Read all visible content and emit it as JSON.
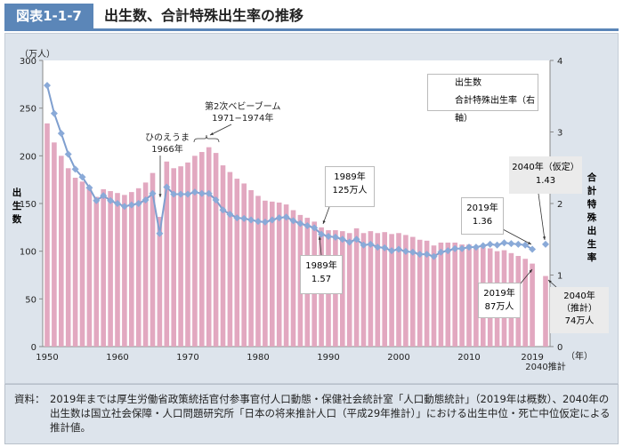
{
  "header": {
    "figure_no": "図表1-1-7",
    "title": "出生数、合計特殊出生率の推移"
  },
  "chart_data": {
    "type": "bar+line",
    "title": "出生数、合計特殊出生率の推移",
    "left_axis": {
      "label": "出生数",
      "unit": "（万人）",
      "ylim": [
        0,
        300
      ],
      "ticks": [
        0,
        50,
        100,
        150,
        200,
        250,
        300
      ]
    },
    "right_axis": {
      "label": "合計特殊出生率",
      "ylim": [
        0,
        4
      ],
      "ticks": [
        0,
        1,
        2,
        3,
        4
      ]
    },
    "x_axis": {
      "unit": "（年）",
      "tick_labels": [
        "1950",
        "1960",
        "1970",
        "1980",
        "1990",
        "2000",
        "2010",
        "2019",
        "2040推計"
      ]
    },
    "legend": {
      "position": "top-right",
      "bars": "出生数",
      "line": "合計特殊出生率（右軸）"
    },
    "years": [
      1950,
      1951,
      1952,
      1953,
      1954,
      1955,
      1956,
      1957,
      1958,
      1959,
      1960,
      1961,
      1962,
      1963,
      1964,
      1965,
      1966,
      1967,
      1968,
      1969,
      1970,
      1971,
      1972,
      1973,
      1974,
      1975,
      1976,
      1977,
      1978,
      1979,
      1980,
      1981,
      1982,
      1983,
      1984,
      1985,
      1986,
      1987,
      1988,
      1989,
      1990,
      1991,
      1992,
      1993,
      1994,
      1995,
      1996,
      1997,
      1998,
      1999,
      2000,
      2001,
      2002,
      2003,
      2004,
      2005,
      2006,
      2007,
      2008,
      2009,
      2010,
      2011,
      2012,
      2013,
      2014,
      2015,
      2016,
      2017,
      2018,
      2019
    ],
    "series": [
      {
        "name": "出生数",
        "type": "bar",
        "color": "#e2a8c0",
        "values": [
          234,
          214,
          200,
          187,
          177,
          173,
          167,
          157,
          165,
          163,
          161,
          159,
          162,
          166,
          172,
          182,
          136,
          194,
          187,
          189,
          193,
          200,
          204,
          209,
          203,
          190,
          183,
          176,
          171,
          164,
          158,
          153,
          152,
          151,
          149,
          143,
          138,
          135,
          131,
          125,
          122,
          122,
          121,
          119,
          124,
          119,
          121,
          119,
          120,
          118,
          119,
          117,
          115,
          112,
          111,
          106,
          109,
          109,
          109,
          107,
          107,
          105,
          104,
          103,
          100,
          101,
          98,
          95,
          92,
          87
        ],
        "projection": {
          "year": "2040推計",
          "value": 74
        }
      },
      {
        "name": "合計特殊出生率（右軸）",
        "type": "line",
        "color": "#7f9fcf",
        "values": [
          3.65,
          3.26,
          2.98,
          2.69,
          2.48,
          2.37,
          2.22,
          2.04,
          2.11,
          2.04,
          2.0,
          1.96,
          1.98,
          2.0,
          2.05,
          2.14,
          1.58,
          2.23,
          2.13,
          2.13,
          2.13,
          2.16,
          2.14,
          2.14,
          2.05,
          1.91,
          1.85,
          1.8,
          1.79,
          1.77,
          1.75,
          1.74,
          1.77,
          1.8,
          1.81,
          1.76,
          1.72,
          1.69,
          1.66,
          1.57,
          1.54,
          1.53,
          1.5,
          1.46,
          1.5,
          1.42,
          1.43,
          1.39,
          1.38,
          1.34,
          1.36,
          1.33,
          1.32,
          1.29,
          1.29,
          1.26,
          1.32,
          1.34,
          1.37,
          1.37,
          1.39,
          1.39,
          1.41,
          1.43,
          1.42,
          1.45,
          1.44,
          1.43,
          1.42,
          1.36
        ],
        "projection": {
          "year": "2040推計",
          "value": 1.43
        }
      }
    ],
    "annotations": {
      "hinoeuma": [
        "ひのえうま",
        "1966年"
      ],
      "babyboom": [
        "第2次ベビーブーム",
        "1971−1974年"
      ],
      "b1989": [
        "1989年",
        "125万人"
      ],
      "r1989": [
        "1989年",
        "1.57"
      ],
      "r2019": [
        "2019年",
        "1.36"
      ],
      "r2040": [
        "2040年（仮定）",
        "1.43"
      ],
      "b2019": [
        "2019年",
        "87万人"
      ],
      "b2040": [
        "2040年",
        "（推計）",
        "74万人"
      ]
    }
  },
  "footer": {
    "label": "資料：",
    "text": "2019年までは厚生労働省政策統括官付参事官付人口動態・保健社会統計室「人口動態統計」（2019年は概数）、2040年の出生数は国立社会保障・人口問題研究所「日本の将来推計人口（平成29年推計）」における出生中位・死亡中位仮定による推計値。"
  }
}
